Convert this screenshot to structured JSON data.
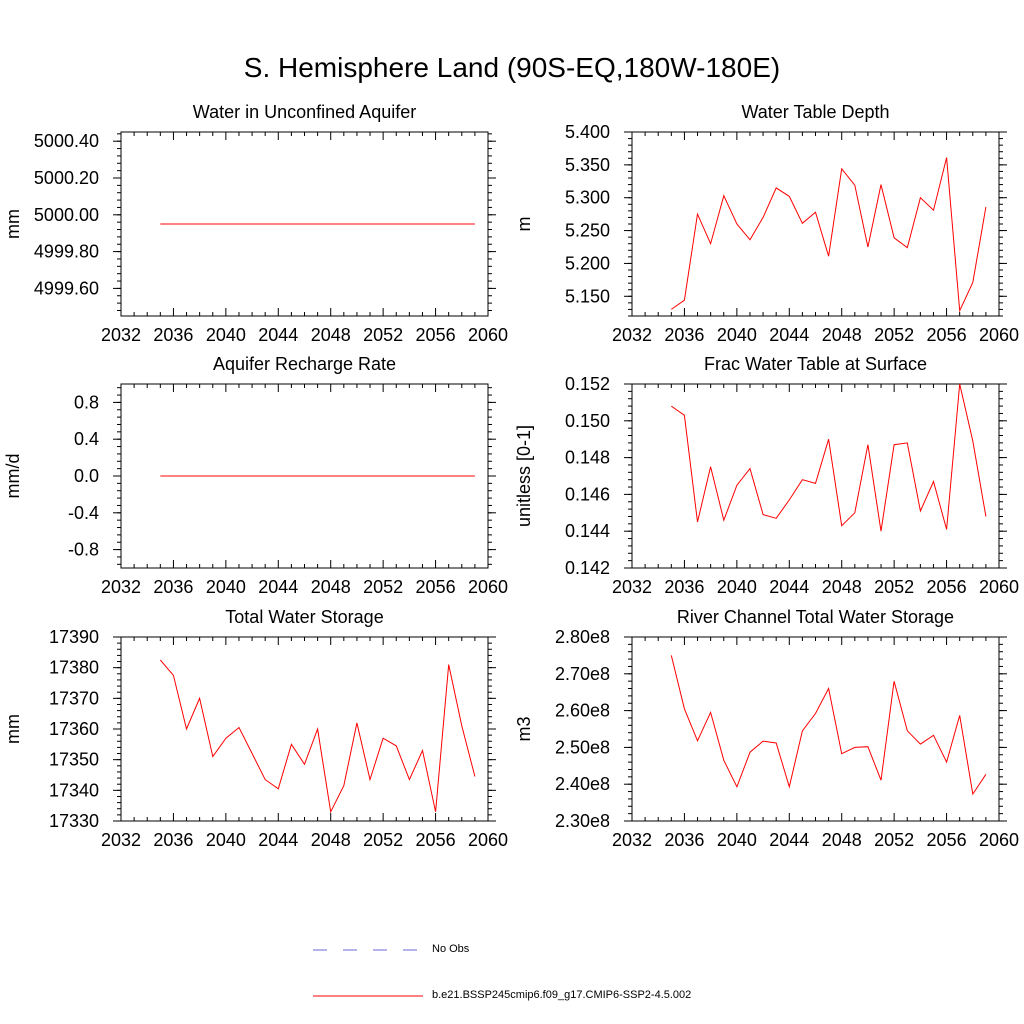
{
  "main_title": "S. Hemisphere Land (90S-EQ,180W-180E)",
  "colors": {
    "series": "#ff0000",
    "obs": "#6a6ad4",
    "axis": "#000000"
  },
  "legend": {
    "obs_label": "No Obs",
    "series_label": "b.e21.BSSP245cmip6.f09_g17.CMIP6-SSP2-4.5.002"
  },
  "chart_data": [
    {
      "id": "aquifer-water",
      "type": "line",
      "title": "Water in Unconfined Aquifer",
      "ylabel": "mm",
      "xlim": [
        2032,
        2060
      ],
      "ylim": [
        4999.45,
        5000.45
      ],
      "xticks": [
        2032,
        2036,
        2040,
        2044,
        2048,
        2052,
        2056,
        2060
      ],
      "yticks": [
        4999.6,
        4999.8,
        5000.0,
        5000.2,
        5000.4
      ],
      "ytick_labels": [
        "4999.60",
        "4999.80",
        "5000.00",
        "5000.20",
        "5000.40"
      ],
      "x": [
        2035,
        2036,
        2037,
        2038,
        2039,
        2040,
        2041,
        2042,
        2043,
        2044,
        2045,
        2046,
        2047,
        2048,
        2049,
        2050,
        2051,
        2052,
        2053,
        2054,
        2055,
        2056,
        2057,
        2058,
        2059
      ],
      "values": [
        4999.95,
        4999.95,
        4999.95,
        4999.95,
        4999.95,
        4999.95,
        4999.95,
        4999.95,
        4999.95,
        4999.95,
        4999.95,
        4999.95,
        4999.95,
        4999.95,
        4999.95,
        4999.95,
        4999.95,
        4999.95,
        4999.95,
        4999.95,
        4999.95,
        4999.95,
        4999.95,
        4999.95,
        4999.95
      ]
    },
    {
      "id": "water-table-depth",
      "type": "line",
      "title": "Water Table Depth",
      "ylabel": "m",
      "xlim": [
        2032,
        2060
      ],
      "ylim": [
        5.12,
        5.4
      ],
      "xticks": [
        2032,
        2036,
        2040,
        2044,
        2048,
        2052,
        2056,
        2060
      ],
      "yticks": [
        5.15,
        5.2,
        5.25,
        5.3,
        5.35,
        5.4
      ],
      "ytick_labels": [
        "5.150",
        "5.200",
        "5.250",
        "5.300",
        "5.350",
        "5.400"
      ],
      "x": [
        2035,
        2036,
        2037,
        2038,
        2039,
        2040,
        2041,
        2042,
        2043,
        2044,
        2045,
        2046,
        2047,
        2048,
        2049,
        2050,
        2051,
        2052,
        2053,
        2054,
        2055,
        2056,
        2057,
        2058,
        2059
      ],
      "values": [
        5.13,
        5.144,
        5.275,
        5.23,
        5.303,
        5.26,
        5.236,
        5.27,
        5.315,
        5.302,
        5.261,
        5.278,
        5.211,
        5.344,
        5.319,
        5.225,
        5.32,
        5.239,
        5.224,
        5.3,
        5.281,
        5.361,
        5.128,
        5.171,
        5.286
      ]
    },
    {
      "id": "aquifer-recharge",
      "type": "line",
      "title": "Aquifer Recharge Rate",
      "ylabel": "mm/d",
      "xlim": [
        2032,
        2060
      ],
      "ylim": [
        -1.0,
        1.0
      ],
      "xticks": [
        2032,
        2036,
        2040,
        2044,
        2048,
        2052,
        2056,
        2060
      ],
      "yticks": [
        -0.8,
        -0.4,
        0.0,
        0.4,
        0.8
      ],
      "ytick_labels": [
        "-0.8",
        "-0.4",
        "0.0",
        "0.4",
        "0.8"
      ],
      "x": [
        2035,
        2036,
        2037,
        2038,
        2039,
        2040,
        2041,
        2042,
        2043,
        2044,
        2045,
        2046,
        2047,
        2048,
        2049,
        2050,
        2051,
        2052,
        2053,
        2054,
        2055,
        2056,
        2057,
        2058,
        2059
      ],
      "values": [
        0,
        0,
        0,
        0,
        0,
        0,
        0,
        0,
        0,
        0,
        0,
        0,
        0,
        0,
        0,
        0,
        0,
        0,
        0,
        0,
        0,
        0,
        0,
        0,
        0
      ]
    },
    {
      "id": "frac-water-table",
      "type": "line",
      "title": "Frac Water Table at Surface",
      "ylabel": "unitless [0-1]",
      "xlim": [
        2032,
        2060
      ],
      "ylim": [
        0.142,
        0.152
      ],
      "xticks": [
        2032,
        2036,
        2040,
        2044,
        2048,
        2052,
        2056,
        2060
      ],
      "yticks": [
        0.142,
        0.144,
        0.146,
        0.148,
        0.15,
        0.152
      ],
      "ytick_labels": [
        "0.142",
        "0.144",
        "0.146",
        "0.148",
        "0.150",
        "0.152"
      ],
      "x": [
        2035,
        2036,
        2037,
        2038,
        2039,
        2040,
        2041,
        2042,
        2043,
        2044,
        2045,
        2046,
        2047,
        2048,
        2049,
        2050,
        2051,
        2052,
        2053,
        2054,
        2055,
        2056,
        2057,
        2058,
        2059
      ],
      "values": [
        0.1508,
        0.1503,
        0.1445,
        0.1475,
        0.1446,
        0.1465,
        0.1474,
        0.1449,
        0.1447,
        0.1457,
        0.1468,
        0.1466,
        0.149,
        0.1443,
        0.145,
        0.1487,
        0.144,
        0.1487,
        0.1488,
        0.1451,
        0.1467,
        0.1441,
        0.152,
        0.1489,
        0.1448
      ]
    },
    {
      "id": "total-water-storage",
      "type": "line",
      "title": "Total Water Storage",
      "ylabel": "mm",
      "xlim": [
        2032,
        2060
      ],
      "ylim": [
        17330,
        17390
      ],
      "xticks": [
        2032,
        2036,
        2040,
        2044,
        2048,
        2052,
        2056,
        2060
      ],
      "yticks": [
        17330,
        17340,
        17350,
        17360,
        17370,
        17380,
        17390
      ],
      "ytick_labels": [
        "17330",
        "17340",
        "17350",
        "17360",
        "17370",
        "17380",
        "17390"
      ],
      "x": [
        2035,
        2036,
        2037,
        2038,
        2039,
        2040,
        2041,
        2042,
        2043,
        2044,
        2045,
        2046,
        2047,
        2048,
        2049,
        2050,
        2051,
        2052,
        2053,
        2054,
        2055,
        2056,
        2057,
        2058,
        2059
      ],
      "values": [
        17382.5,
        17377.5,
        17360,
        17370,
        17351,
        17357,
        17360.5,
        17352,
        17343.5,
        17340.5,
        17355,
        17348.5,
        17360,
        17333,
        17341.5,
        17362,
        17343.5,
        17357,
        17354.5,
        17343.5,
        17353,
        17333,
        17381,
        17361,
        17344.5
      ]
    },
    {
      "id": "river-channel-storage",
      "type": "line",
      "title": "River Channel Total Water Storage",
      "ylabel": "m3",
      "xlim": [
        2032,
        2060
      ],
      "ylim": [
        230000000.0,
        280000000.0
      ],
      "xticks": [
        2032,
        2036,
        2040,
        2044,
        2048,
        2052,
        2056,
        2060
      ],
      "yticks": [
        230000000.0,
        240000000.0,
        250000000.0,
        260000000.0,
        270000000.0,
        280000000.0
      ],
      "ytick_labels": [
        "2.30e8",
        "2.40e8",
        "2.50e8",
        "2.60e8",
        "2.70e8",
        "2.80e8"
      ],
      "x": [
        2035,
        2036,
        2037,
        2038,
        2039,
        2040,
        2041,
        2042,
        2043,
        2044,
        2045,
        2046,
        2047,
        2048,
        2049,
        2050,
        2051,
        2052,
        2053,
        2054,
        2055,
        2056,
        2057,
        2058,
        2059
      ],
      "values": [
        275000000.0,
        260500000.0,
        251800000.0,
        259500000.0,
        246500000.0,
        239300000.0,
        248700000.0,
        251700000.0,
        251200000.0,
        239300000.0,
        254500000.0,
        259200000.0,
        266000000.0,
        248300000.0,
        250000000.0,
        250200000.0,
        241100000.0,
        268000000.0,
        254500000.0,
        250900000.0,
        253300000.0,
        246000000.0,
        258700000.0,
        237300000.0,
        242700000.0
      ]
    }
  ]
}
